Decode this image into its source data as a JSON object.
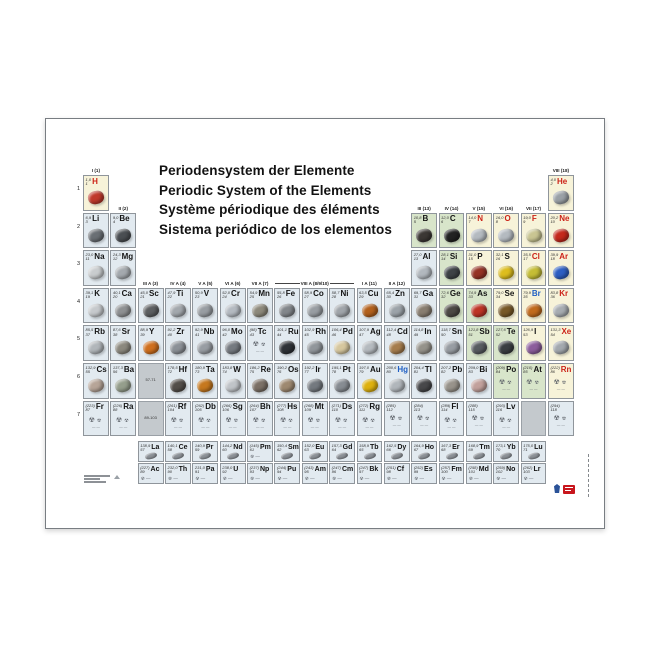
{
  "poster": {
    "titles": [
      "Periodensystem der Elemente",
      "Periodic System of the Elements",
      "Système périodique des éléments",
      "Sistema periódico de los elementos"
    ],
    "period_numbers": [
      "1",
      "2",
      "3",
      "4",
      "5",
      "6",
      "7"
    ],
    "group_labels": [
      {
        "t": "I (1)",
        "c": 1,
        "row": 1
      },
      {
        "t": "VIII (18)",
        "c": 18,
        "row": 1
      },
      {
        "t": "II (2)",
        "c": 2,
        "row": 2
      },
      {
        "t": "III (13)",
        "c": 13,
        "row": 2
      },
      {
        "t": "IV (14)",
        "c": 14,
        "row": 2
      },
      {
        "t": "V (15)",
        "c": 15,
        "row": 2
      },
      {
        "t": "VI (16)",
        "c": 16,
        "row": 2
      },
      {
        "t": "VII (17)",
        "c": 17,
        "row": 2
      },
      {
        "t": "III A (3)",
        "c": 3,
        "row": 4
      },
      {
        "t": "IV A (4)",
        "c": 4,
        "row": 4
      },
      {
        "t": "V A (5)",
        "c": 5,
        "row": 4
      },
      {
        "t": "VI A (6)",
        "c": 6,
        "row": 4
      },
      {
        "t": "VII A (7)",
        "c": 7,
        "row": 4
      },
      {
        "t": "VIII A (8/9/10)",
        "c": 8,
        "span": 3,
        "row": 4,
        "lines": true
      },
      {
        "t": "I A (11)",
        "c": 11,
        "row": 4
      },
      {
        "t": "II A (12)",
        "c": 12,
        "row": 4
      }
    ],
    "colors": {
      "bg_metal": "#e2eaf0",
      "bg_nonmetal": "#f7f3d9",
      "bg_metalloid": "#d8e5ca",
      "bg_placeholder": "#c4c9cd",
      "sym_solid": "#141414",
      "sym_gas": "#cc2318",
      "sym_liquid": "#1f5fc4",
      "radioactive_glyph": "#5e636a"
    },
    "radioactive_glyph": "☢",
    "elements": [
      {
        "n": 1,
        "s": "H",
        "m": "1,0",
        "r": 1,
        "c": 1,
        "cat": "n",
        "st": "g",
        "pc": "#c0392b"
      },
      {
        "n": 2,
        "s": "He",
        "m": "4,0",
        "r": 1,
        "c": 18,
        "cat": "n",
        "st": "g",
        "pc": "#9aa0a6"
      },
      {
        "n": 3,
        "s": "Li",
        "m": "6,9",
        "r": 2,
        "c": 1,
        "pc": "#6a6f74"
      },
      {
        "n": 4,
        "s": "Be",
        "m": "9,0",
        "r": 2,
        "c": 2,
        "pc": "#4a4e52"
      },
      {
        "n": 5,
        "s": "B",
        "m": "10,8",
        "r": 2,
        "c": 13,
        "cat": "h",
        "pc": "#3b3734"
      },
      {
        "n": 6,
        "s": "C",
        "m": "12,0",
        "r": 2,
        "c": 14,
        "cat": "h",
        "pc": "#222222"
      },
      {
        "n": 7,
        "s": "N",
        "m": "14,0",
        "r": 2,
        "c": 15,
        "cat": "n",
        "st": "g",
        "pc": "#b4bac0"
      },
      {
        "n": 8,
        "s": "O",
        "m": "16,0",
        "r": 2,
        "c": 16,
        "cat": "n",
        "st": "g",
        "pc": "#b4bac0"
      },
      {
        "n": 9,
        "s": "F",
        "m": "19,0",
        "r": 2,
        "c": 17,
        "cat": "n",
        "st": "g",
        "pc": "#c9c592"
      },
      {
        "n": 10,
        "s": "Ne",
        "m": "20,2",
        "r": 2,
        "c": 18,
        "cat": "n",
        "st": "g",
        "pc": "#c4281c"
      },
      {
        "n": 11,
        "s": "Na",
        "m": "23,0",
        "r": 3,
        "c": 1,
        "pc": "#c9ccce"
      },
      {
        "n": 12,
        "s": "Mg",
        "m": "24,3",
        "r": 3,
        "c": 2,
        "pc": "#a4a9ae"
      },
      {
        "n": 13,
        "s": "Al",
        "m": "27,0",
        "r": 3,
        "c": 13,
        "pc": "#b2b8be"
      },
      {
        "n": 14,
        "s": "Si",
        "m": "28,1",
        "r": 3,
        "c": 14,
        "cat": "h",
        "pc": "#3e4246"
      },
      {
        "n": 15,
        "s": "P",
        "m": "31,0",
        "r": 3,
        "c": 15,
        "cat": "n",
        "pc": "#953325"
      },
      {
        "n": 16,
        "s": "S",
        "m": "32,1",
        "r": 3,
        "c": 16,
        "cat": "n",
        "pc": "#ddbd1d"
      },
      {
        "n": 17,
        "s": "Cl",
        "m": "35,5",
        "r": 3,
        "c": 17,
        "cat": "n",
        "st": "g",
        "pc": "#c5bd35"
      },
      {
        "n": 18,
        "s": "Ar",
        "m": "39,9",
        "r": 3,
        "c": 18,
        "cat": "n",
        "st": "g",
        "pc": "#2d5ec2"
      },
      {
        "n": 19,
        "s": "K",
        "m": "39,1",
        "r": 4,
        "c": 1,
        "pc": "#c6c9cc"
      },
      {
        "n": 20,
        "s": "Ca",
        "m": "40,1",
        "r": 4,
        "c": 2,
        "pc": "#8e9092"
      },
      {
        "n": 21,
        "s": "Sc",
        "m": "45,0",
        "r": 4,
        "c": 3,
        "pc": "#5d5f61"
      },
      {
        "n": 22,
        "s": "Ti",
        "m": "47,9",
        "r": 4,
        "c": 4,
        "pc": "#a3a8ad"
      },
      {
        "n": 23,
        "s": "V",
        "m": "50,9",
        "r": 4,
        "c": 5,
        "pc": "#989da2"
      },
      {
        "n": 24,
        "s": "Cr",
        "m": "52,0",
        "r": 4,
        "c": 6,
        "pc": "#b4bac1"
      },
      {
        "n": 25,
        "s": "Mn",
        "m": "54,9",
        "r": 4,
        "c": 7,
        "pc": "#8d897b"
      },
      {
        "n": 26,
        "s": "Fe",
        "m": "55,8",
        "r": 4,
        "c": 8,
        "pc": "#83878b"
      },
      {
        "n": 27,
        "s": "Co",
        "m": "58,9",
        "r": 4,
        "c": 9,
        "pc": "#989da2"
      },
      {
        "n": 28,
        "s": "Ni",
        "m": "58,7",
        "r": 4,
        "c": 10,
        "pc": "#a0a5aa"
      },
      {
        "n": 29,
        "s": "Cu",
        "m": "63,5",
        "r": 4,
        "c": 11,
        "pc": "#b2601c"
      },
      {
        "n": 30,
        "s": "Zn",
        "m": "65,4",
        "r": 4,
        "c": 12,
        "pc": "#9ca3a9"
      },
      {
        "n": 31,
        "s": "Ga",
        "m": "69,7",
        "r": 4,
        "c": 13,
        "pc": "#887d70"
      },
      {
        "n": 32,
        "s": "Ge",
        "m": "72,6",
        "r": 4,
        "c": 14,
        "cat": "h",
        "pc": "#4d4945"
      },
      {
        "n": 33,
        "s": "As",
        "m": "74,9",
        "r": 4,
        "c": 15,
        "cat": "h",
        "pc": "#bd3425"
      },
      {
        "n": 34,
        "s": "Se",
        "m": "79,0",
        "r": 4,
        "c": 16,
        "cat": "n",
        "pc": "#775827"
      },
      {
        "n": 35,
        "s": "Br",
        "m": "79,9",
        "r": 4,
        "c": 17,
        "cat": "n",
        "st": "l",
        "pc": "#c16a1d"
      },
      {
        "n": 36,
        "s": "Kr",
        "m": "83,8",
        "r": 4,
        "c": 18,
        "cat": "n",
        "st": "g",
        "pc": "#a7acb1"
      },
      {
        "n": 37,
        "s": "Rb",
        "m": "85,5",
        "r": 5,
        "c": 1,
        "pc": "#b1b6ba"
      },
      {
        "n": 38,
        "s": "Sr",
        "m": "87,6",
        "r": 5,
        "c": 2,
        "pc": "#8b887e"
      },
      {
        "n": 39,
        "s": "Y",
        "m": "88,9",
        "r": 5,
        "c": 3,
        "pc": "#cf6f1e"
      },
      {
        "n": 40,
        "s": "Zr",
        "m": "91,2",
        "r": 5,
        "c": 4,
        "pc": "#8c9197"
      },
      {
        "n": 41,
        "s": "Nb",
        "m": "92,9",
        "r": 5,
        "c": 5,
        "pc": "#989da3"
      },
      {
        "n": 42,
        "s": "Mo",
        "m": "96,0",
        "r": 5,
        "c": 6,
        "pc": "#757a80"
      },
      {
        "n": 43,
        "s": "Tc",
        "m": "(98)",
        "r": 5,
        "c": 7,
        "k": "r"
      },
      {
        "n": 44,
        "s": "Ru",
        "m": "101,1",
        "r": 5,
        "c": 8,
        "pc": "#2e3237"
      },
      {
        "n": 45,
        "s": "Rh",
        "m": "102,9",
        "r": 5,
        "c": 9,
        "pc": "#91969b"
      },
      {
        "n": 46,
        "s": "Pd",
        "m": "106,4",
        "r": 5,
        "c": 10,
        "pc": "#d6c79e"
      },
      {
        "n": 47,
        "s": "Ag",
        "m": "107,9",
        "r": 5,
        "c": 11,
        "pc": "#b5babf"
      },
      {
        "n": 48,
        "s": "Cd",
        "m": "112,4",
        "r": 5,
        "c": 12,
        "pc": "#a67d4d"
      },
      {
        "n": 49,
        "s": "In",
        "m": "114,8",
        "r": 5,
        "c": 13,
        "pc": "#95928a"
      },
      {
        "n": 50,
        "s": "Sn",
        "m": "118,7",
        "r": 5,
        "c": 14,
        "pc": "#989da3"
      },
      {
        "n": 51,
        "s": "Sb",
        "m": "121,8",
        "r": 5,
        "c": 15,
        "cat": "h",
        "pc": "#585c60"
      },
      {
        "n": 52,
        "s": "Te",
        "m": "127,6",
        "r": 5,
        "c": 16,
        "cat": "h",
        "pc": "#3a3e42"
      },
      {
        "n": 53,
        "s": "I",
        "m": "126,9",
        "r": 5,
        "c": 17,
        "cat": "n",
        "pc": "#8c5d9c"
      },
      {
        "n": 54,
        "s": "Xe",
        "m": "131,3",
        "r": 5,
        "c": 18,
        "cat": "n",
        "st": "g",
        "pc": "#a3a8ae"
      },
      {
        "n": 55,
        "s": "Cs",
        "m": "132,9",
        "r": 6,
        "c": 1,
        "pc": "#b7a598"
      },
      {
        "n": 56,
        "s": "Ba",
        "m": "137,3",
        "r": 6,
        "c": 2,
        "pc": "#959e8c"
      },
      {
        "n": 72,
        "s": "Hf",
        "m": "178,5",
        "r": 6,
        "c": 4,
        "pc": "#534e49"
      },
      {
        "n": 73,
        "s": "Ta",
        "m": "180,9",
        "r": 6,
        "c": 5,
        "pc": "#c6781e"
      },
      {
        "n": 74,
        "s": "W",
        "m": "183,8",
        "r": 6,
        "c": 6,
        "pc": "#c0c4c8"
      },
      {
        "n": 75,
        "s": "Re",
        "m": "186,2",
        "r": 6,
        "c": 7,
        "pc": "#7b7066"
      },
      {
        "n": 76,
        "s": "Os",
        "m": "190,2",
        "r": 6,
        "c": 8,
        "pc": "#9e8970"
      },
      {
        "n": 77,
        "s": "Ir",
        "m": "192,2",
        "r": 6,
        "c": 9,
        "pc": "#74797f"
      },
      {
        "n": 78,
        "s": "Pt",
        "m": "195,1",
        "r": 6,
        "c": 10,
        "pc": "#878c92"
      },
      {
        "n": 79,
        "s": "Au",
        "m": "197,0",
        "r": 6,
        "c": 11,
        "pc": "#deb10d"
      },
      {
        "n": 80,
        "s": "Hg",
        "m": "200,6",
        "r": 6,
        "c": 12,
        "st": "l",
        "pc": "#b1b6bb"
      },
      {
        "n": 81,
        "s": "Tl",
        "m": "204,4",
        "r": 6,
        "c": 13,
        "pc": "#48484a"
      },
      {
        "n": 82,
        "s": "Pb",
        "m": "207,2",
        "r": 6,
        "c": 14,
        "pc": "#98938b"
      },
      {
        "n": 83,
        "s": "Bi",
        "m": "209,0",
        "r": 6,
        "c": 15,
        "pc": "#c2a19c"
      },
      {
        "n": 84,
        "s": "Po",
        "m": "(209)",
        "r": 6,
        "c": 16,
        "cat": "h",
        "k": "r"
      },
      {
        "n": 85,
        "s": "At",
        "m": "(210)",
        "r": 6,
        "c": 17,
        "cat": "h",
        "k": "r"
      },
      {
        "n": 86,
        "s": "Rn",
        "m": "(222)",
        "r": 6,
        "c": 18,
        "cat": "n",
        "st": "g",
        "k": "r"
      },
      {
        "n": 87,
        "s": "Fr",
        "m": "(223)",
        "r": 7,
        "c": 1,
        "k": "r"
      },
      {
        "n": 88,
        "s": "Ra",
        "m": "(226)",
        "r": 7,
        "c": 2,
        "k": "r"
      },
      {
        "n": 104,
        "s": "Rf",
        "m": "(261)",
        "r": 7,
        "c": 4,
        "k": "r"
      },
      {
        "n": 105,
        "s": "Db",
        "m": "(262)",
        "r": 7,
        "c": 5,
        "k": "r"
      },
      {
        "n": 106,
        "s": "Sg",
        "m": "(266)",
        "r": 7,
        "c": 6,
        "k": "r"
      },
      {
        "n": 107,
        "s": "Bh",
        "m": "(264)",
        "r": 7,
        "c": 7,
        "k": "r"
      },
      {
        "n": 108,
        "s": "Hs",
        "m": "(277)",
        "r": 7,
        "c": 8,
        "k": "r"
      },
      {
        "n": 109,
        "s": "Mt",
        "m": "(268)",
        "r": 7,
        "c": 9,
        "k": "r"
      },
      {
        "n": 110,
        "s": "Ds",
        "m": "(271)",
        "r": 7,
        "c": 10,
        "k": "r"
      },
      {
        "n": 111,
        "s": "Rg",
        "m": "(272)",
        "r": 7,
        "c": 11,
        "k": "r"
      },
      {
        "n": 112,
        "s": "",
        "m": "(285)",
        "r": 7,
        "c": 12,
        "k": "o"
      },
      {
        "n": 113,
        "s": "",
        "m": "(284)",
        "r": 7,
        "c": 13,
        "k": "o"
      },
      {
        "n": 114,
        "s": "Fl",
        "m": "(289)",
        "r": 7,
        "c": 14,
        "k": "r"
      },
      {
        "n": 115,
        "s": "",
        "m": "(288)",
        "r": 7,
        "c": 15,
        "k": "o"
      },
      {
        "n": 116,
        "s": "Lv",
        "m": "(293)",
        "r": 7,
        "c": 16,
        "k": "r"
      },
      {
        "n": 118,
        "s": "",
        "m": "(294)",
        "r": 7,
        "c": 18,
        "k": "o"
      },
      {
        "n": 57,
        "s": "La",
        "m": "138,9",
        "r": 8,
        "c": 3,
        "pc": "#8d9298"
      },
      {
        "n": 58,
        "s": "Ce",
        "m": "140,1",
        "r": 8,
        "c": 4,
        "pc": "#8d9298"
      },
      {
        "n": 59,
        "s": "Pr",
        "m": "140,9",
        "r": 8,
        "c": 5,
        "pc": "#8d9298"
      },
      {
        "n": 60,
        "s": "Nd",
        "m": "144,2",
        "r": 8,
        "c": 6,
        "pc": "#8d9298"
      },
      {
        "n": 61,
        "s": "Pm",
        "m": "(145)",
        "r": 8,
        "c": 7,
        "k": "r"
      },
      {
        "n": 62,
        "s": "Sm",
        "m": "150,4",
        "r": 8,
        "c": 8,
        "pc": "#8d9298"
      },
      {
        "n": 63,
        "s": "Eu",
        "m": "152,0",
        "r": 8,
        "c": 9,
        "pc": "#8d9298"
      },
      {
        "n": 64,
        "s": "Gd",
        "m": "157,3",
        "r": 8,
        "c": 10,
        "pc": "#8d9298"
      },
      {
        "n": 65,
        "s": "Tb",
        "m": "158,9",
        "r": 8,
        "c": 11,
        "pc": "#8d9298"
      },
      {
        "n": 66,
        "s": "Dy",
        "m": "162,5",
        "r": 8,
        "c": 12,
        "pc": "#8d9298"
      },
      {
        "n": 67,
        "s": "Ho",
        "m": "164,9",
        "r": 8,
        "c": 13,
        "pc": "#8d9298"
      },
      {
        "n": 68,
        "s": "Er",
        "m": "167,3",
        "r": 8,
        "c": 14,
        "pc": "#8d9298"
      },
      {
        "n": 69,
        "s": "Tm",
        "m": "168,9",
        "r": 8,
        "c": 15,
        "pc": "#8d9298"
      },
      {
        "n": 70,
        "s": "Yb",
        "m": "173,1",
        "r": 8,
        "c": 16,
        "pc": "#8d9298"
      },
      {
        "n": 71,
        "s": "Lu",
        "m": "175,0",
        "r": 8,
        "c": 17,
        "pc": "#8d9298"
      },
      {
        "n": 89,
        "s": "Ac",
        "m": "(227)",
        "r": 9,
        "c": 3,
        "k": "r"
      },
      {
        "n": 90,
        "s": "Th",
        "m": "232,0",
        "r": 9,
        "c": 4,
        "k": "r"
      },
      {
        "n": 91,
        "s": "Pa",
        "m": "231,0",
        "r": 9,
        "c": 5,
        "k": "r"
      },
      {
        "n": 92,
        "s": "U",
        "m": "238,0",
        "r": 9,
        "c": 6,
        "k": "r"
      },
      {
        "n": 93,
        "s": "Np",
        "m": "(237)",
        "r": 9,
        "c": 7,
        "k": "r"
      },
      {
        "n": 94,
        "s": "Pu",
        "m": "(244)",
        "r": 9,
        "c": 8,
        "k": "r"
      },
      {
        "n": 95,
        "s": "Am",
        "m": "(243)",
        "r": 9,
        "c": 9,
        "k": "r"
      },
      {
        "n": 96,
        "s": "Cm",
        "m": "(247)",
        "r": 9,
        "c": 10,
        "k": "r"
      },
      {
        "n": 97,
        "s": "Bk",
        "m": "(247)",
        "r": 9,
        "c": 11,
        "k": "r"
      },
      {
        "n": 98,
        "s": "Cf",
        "m": "(251)",
        "r": 9,
        "c": 12,
        "k": "r"
      },
      {
        "n": 99,
        "s": "Es",
        "m": "(252)",
        "r": 9,
        "c": 13,
        "k": "r"
      },
      {
        "n": 100,
        "s": "Fm",
        "m": "(257)",
        "r": 9,
        "c": 14,
        "k": "r"
      },
      {
        "n": 101,
        "s": "Md",
        "m": "(258)",
        "r": 9,
        "c": 15,
        "k": "r"
      },
      {
        "n": 102,
        "s": "No",
        "m": "(259)",
        "r": 9,
        "c": 16,
        "k": "r"
      },
      {
        "n": 103,
        "s": "Lr",
        "m": "(262)",
        "r": 9,
        "c": 17,
        "k": "r"
      }
    ],
    "placeholders": [
      {
        "t": "57-71",
        "r": 6,
        "c": 3
      },
      {
        "t": "89-103",
        "r": 7,
        "c": 3
      },
      {
        "t": "",
        "r": 7,
        "c": 17
      }
    ]
  }
}
